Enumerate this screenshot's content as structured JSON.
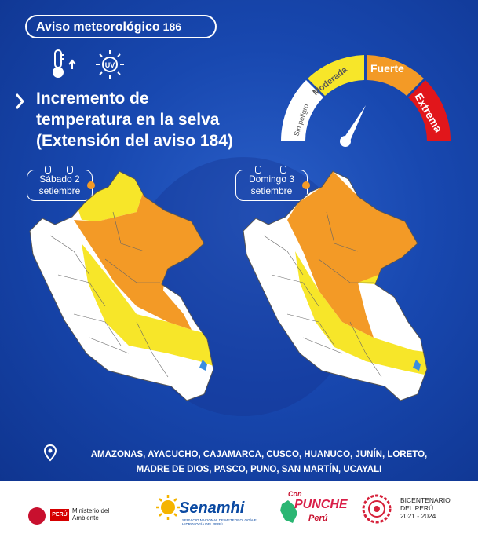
{
  "header": {
    "badge_title": "Aviso meteorológico",
    "badge_number": "186"
  },
  "icons": [
    "thermometer-up-icon",
    "uv-sun-icon"
  ],
  "title": {
    "line1": "Incremento de",
    "line2": "temperatura en la selva",
    "line3": "(Extensión del aviso 184)"
  },
  "gauge": {
    "levels": [
      {
        "label": "Sin peligro",
        "color": "#ffffff"
      },
      {
        "label": "Moderada",
        "color": "#f7e629"
      },
      {
        "label": "Fuerte",
        "color": "#f39a26"
      },
      {
        "label": "Extrema",
        "color": "#e1161b"
      }
    ],
    "needle_level": "Fuerte"
  },
  "maps": [
    {
      "day_line1": "Sábado 2",
      "day_line2": "setiembre"
    },
    {
      "day_line1": "Domingo 3",
      "day_line2": "setiembre"
    }
  ],
  "regions": {
    "line1": "AMAZONAS, AYACUCHO, CAJAMARCA, CUSCO, HUANUCO, JUNÍN, LORETO,",
    "line2": "MADRE DE DIOS, PASCO, PUNO, SAN MARTÍN, UCAYALI"
  },
  "footer": {
    "ministry_flag": "PERÚ",
    "ministry_name": "Ministerio del Ambiente",
    "senamhi_name": "Senamhi",
    "senamhi_sub": "SERVICIO NACIONAL DE METEOROLOGÍA E HIDROLOGÍA DEL PERÚ",
    "campaign_a": "Con",
    "campaign_b": "PUNCHE",
    "campaign_c": "Perú",
    "bicentenario_l1": "BICENTENARIO",
    "bicentenario_l2": "DEL PERÚ",
    "bicentenario_l3": "2021 - 2024"
  },
  "colors": {
    "background": "#1848b0",
    "moderada": "#f7e629",
    "fuerte": "#f39a26",
    "extrema": "#e1161b",
    "land": "#ffffff"
  }
}
